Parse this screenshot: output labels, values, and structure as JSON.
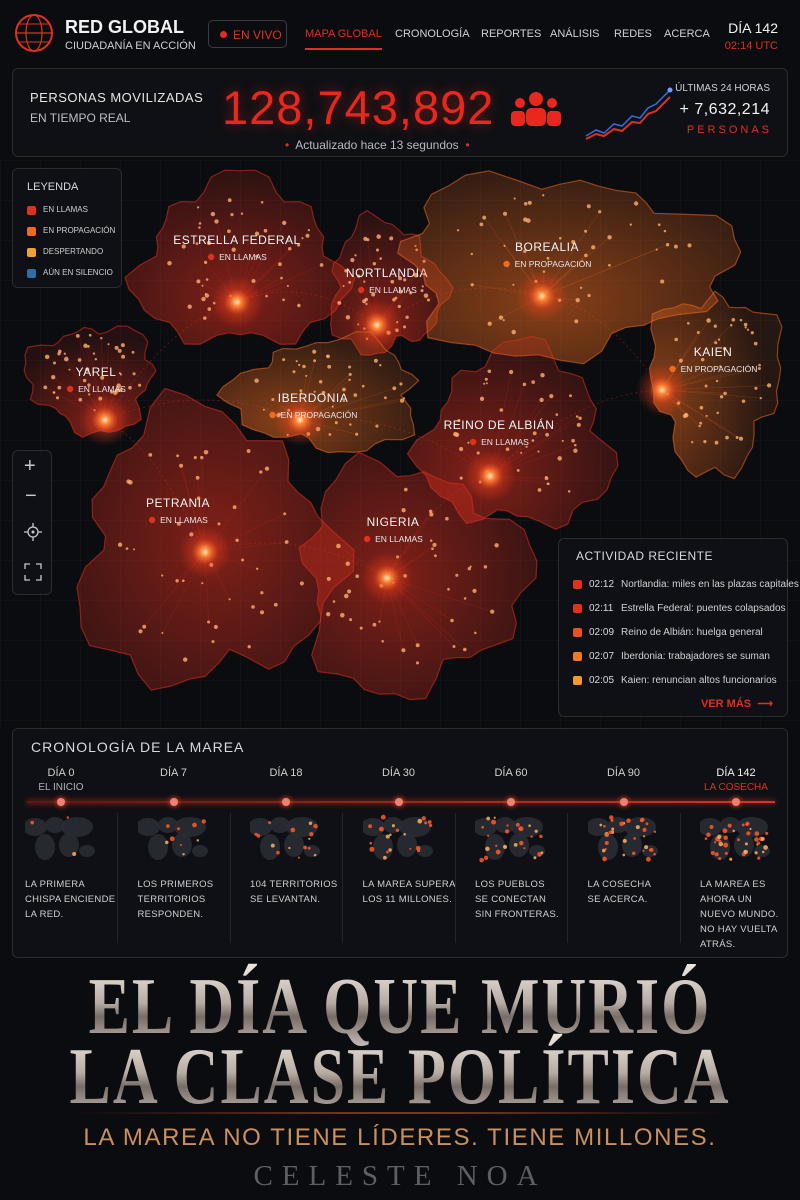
{
  "header": {
    "brand_name": "RED GLOBAL",
    "brand_tagline": "CIUDADANÍA EN ACCIÓN",
    "live": "EN VIVO",
    "nav": [
      "MAPA GLOBAL",
      "CRONOLOGÍA",
      "REPORTES",
      "ANÁLISIS",
      "REDES",
      "ACERCA"
    ],
    "day": "DÍA 142",
    "time": "02:14 UTC"
  },
  "counter": {
    "label_line1": "PERSONAS MOVILIZADAS",
    "label_line2": "EN TIEMPO REAL",
    "value": "128,743,892",
    "updated": "Actualizado hace 13 segundos",
    "period": "ÚLTIMAS 24 HORAS",
    "delta": "+ 7,632,214",
    "delta_unit": "PERSONAS"
  },
  "legend": {
    "title": "LEYENDA",
    "items": [
      {
        "label": "EN LLAMAS",
        "color": "#e0301e"
      },
      {
        "label": "EN PROPAGACIÓN",
        "color": "#ee6a1f"
      },
      {
        "label": "DESPERTANDO",
        "color": "#f0a030"
      },
      {
        "label": "AÚN EN SILENCIO",
        "color": "#2f6fa8"
      }
    ]
  },
  "regions": [
    {
      "name": "ESTRELLA FEDERAL",
      "status": "EN LLAMAS"
    },
    {
      "name": "NORTLANDIA",
      "status": "EN LLAMAS"
    },
    {
      "name": "BOREALIA",
      "status": "EN PROPAGACIÓN"
    },
    {
      "name": "KAIEN",
      "status": "EN PROPAGACIÓN"
    },
    {
      "name": "YAREL",
      "status": "EN LLAMAS"
    },
    {
      "name": "IBERDONIA",
      "status": "EN PROPAGACIÓN"
    },
    {
      "name": "REINO DE ALBIÁN",
      "status": "EN LLAMAS"
    },
    {
      "name": "PETRANIA",
      "status": "EN LLAMAS"
    },
    {
      "name": "NIGERIA",
      "status": "EN LLAMAS"
    }
  ],
  "activity": {
    "title": "ACTIVIDAD RECIENTE",
    "more": "VER MÁS",
    "items": [
      {
        "time": "02:12",
        "text": "Nortlandia: miles en las plazas capitales",
        "color": "#e0301e"
      },
      {
        "time": "02:11",
        "text": "Estrella Federal: puentes colapsados",
        "color": "#e0301e"
      },
      {
        "time": "02:09",
        "text": "Reino de Albián: huelga general",
        "color": "#e8501e"
      },
      {
        "time": "02:07",
        "text": "Iberdonia: trabajadores se suman",
        "color": "#ee7a22"
      },
      {
        "time": "02:05",
        "text": "Kaien: renuncian altos funcionarios",
        "color": "#f09a2c"
      }
    ]
  },
  "timeline": {
    "title": "CRONOLOGÍA DE LA MAREA",
    "stages": [
      {
        "day": "DÍA 0",
        "label": "EL INICIO",
        "text": [
          "LA PRIMERA",
          "CHISPA ENCIENDE",
          "LA RED."
        ]
      },
      {
        "day": "DÍA 7",
        "text": [
          "LOS PRIMEROS",
          "TERRITORIOS",
          "RESPONDEN."
        ]
      },
      {
        "day": "DÍA 18",
        "text": [
          "104 TERRITORIOS",
          "SE LEVANTAN."
        ]
      },
      {
        "day": "DÍA 30",
        "text": [
          "LA MAREA SUPERA",
          "LOS 11 MILLONES."
        ]
      },
      {
        "day": "DÍA 60",
        "text": [
          "LOS PUEBLOS",
          "SE CONECTAN",
          "SIN FRONTERAS."
        ]
      },
      {
        "day": "DÍA 90",
        "text": [
          "LA COSECHA",
          "SE ACERCA."
        ]
      },
      {
        "day": "DÍA 142",
        "label": "LA COSECHA",
        "text": [
          "LA MAREA ES",
          "AHORA UN",
          "NUEVO MUNDO.",
          "NO HAY VUELTA",
          "ATRÁS."
        ]
      }
    ]
  },
  "cover": {
    "title_line1": "EL DÍA QUE MURIÓ",
    "title_line2": "LA CLASE POLÍTICA",
    "tagline": "LA MAREA NO TIENE LÍDERES. TIENE MILLONES.",
    "author": "CELESTE NOA"
  }
}
